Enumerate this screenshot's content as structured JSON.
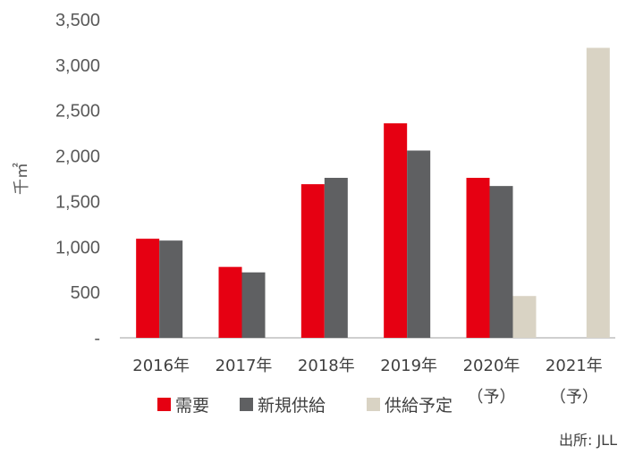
{
  "chart_data": {
    "type": "bar",
    "categories": [
      "2016年",
      "2017年",
      "2018年",
      "2019年",
      "2020年",
      "2021年"
    ],
    "category_suffix": [
      "",
      "",
      "",
      "",
      "（予）",
      "（予）"
    ],
    "series": [
      {
        "name": "需要",
        "color": "#e60012",
        "values": [
          1090,
          780,
          1690,
          2360,
          1760,
          null
        ]
      },
      {
        "name": "新規供給",
        "color": "#5f6062",
        "values": [
          1070,
          720,
          1760,
          2060,
          1670,
          null
        ]
      },
      {
        "name": "供給予定",
        "color": "#d9d3c4",
        "values": [
          null,
          null,
          null,
          null,
          460,
          3190
        ]
      }
    ],
    "ylabel": "千㎡",
    "ylim": [
      0,
      3500
    ],
    "yticks": [
      0,
      500,
      1000,
      1500,
      2000,
      2500,
      3000,
      3500
    ],
    "ytick_labels": [
      "-",
      "500",
      "1,000",
      "1,500",
      "2,000",
      "2,500",
      "3,000",
      "3,500"
    ],
    "grid": false,
    "legend_position": "bottom",
    "source": "出所: JLL"
  }
}
